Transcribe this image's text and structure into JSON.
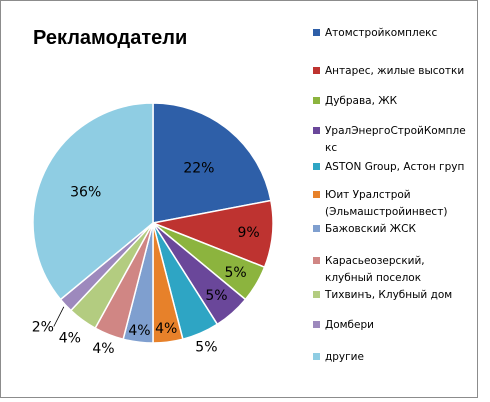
{
  "chart_data": {
    "type": "pie",
    "title": "Рекламодатели",
    "legend_position": "right",
    "slices": [
      {
        "name": "Атомстройкомплекс",
        "value": 22,
        "label": "22%",
        "color": "#2e5fa8"
      },
      {
        "name": "Антарес, жилые высотки",
        "value": 9,
        "label": "9%",
        "color": "#be3330"
      },
      {
        "name": "Дубрава, ЖК",
        "value": 5,
        "label": "5%",
        "color": "#8cb43e"
      },
      {
        "name": "УралЭнергоСтройКомплекс",
        "value": 5,
        "label": "5%",
        "color": "#6a479a"
      },
      {
        "name": "ASTON Group, Астон груп",
        "value": 5,
        "label": "5%",
        "color": "#2ea5c4"
      },
      {
        "name": "Юит Уралстрой (Эльмашстройинвест)",
        "value": 4,
        "label": "4%",
        "color": "#e7812a"
      },
      {
        "name": "Бажовский ЖСК",
        "value": 4,
        "label": "4%",
        "color": "#7f9fcf"
      },
      {
        "name": "Карасьеозерский, клубный поселок",
        "value": 4,
        "label": "4%",
        "color": "#d08684"
      },
      {
        "name": "Тихвинъ, Клубный дом",
        "value": 4,
        "label": "4%",
        "color": "#b3cc80"
      },
      {
        "name": "Домбери",
        "value": 2,
        "label": "2%",
        "color": "#9d89bd"
      },
      {
        "name": "другие",
        "value": 36,
        "label": "36%",
        "color": "#8fcde3"
      }
    ]
  },
  "legend": [
    "Атомстройкомплекс",
    "Антарес, жилые высотки",
    "Дубрава, ЖК",
    "УралЭнергоСтройКомпле кс",
    "ASTON Group, Астон груп",
    "Юит Уралстрой (Эльмашстройинвест)",
    "Бажовский ЖСК",
    "Карасьеозерский, клубный поселок",
    "Тихвинъ, Клубный дом",
    "Домбери",
    "другие"
  ]
}
